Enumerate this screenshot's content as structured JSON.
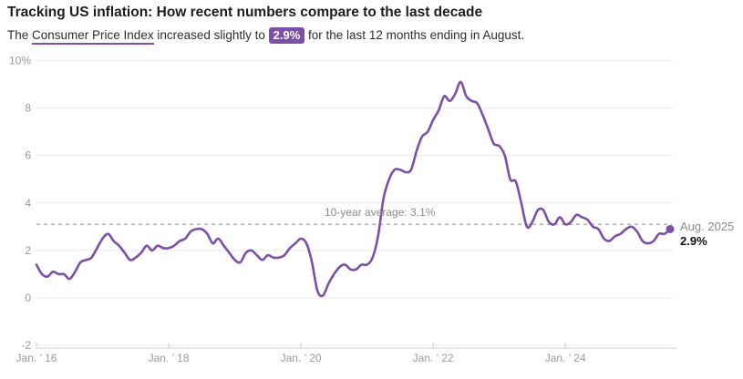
{
  "header": {
    "title": "Tracking US inflation: How recent numbers compare to the last decade",
    "subtitle_prefix": "The ",
    "subtitle_term": "Consumer Price Index",
    "subtitle_mid": " increased slightly to ",
    "subtitle_badge": "2.9%",
    "subtitle_suffix": " for the last 12 months ending in August."
  },
  "average_line": {
    "label": "10-year average: 3.1%",
    "value": 3.1
  },
  "annotation": {
    "date_label": "Aug. 2025",
    "value_label": "2.9%"
  },
  "colors": {
    "line": "#7d4fa6",
    "accent": "#7d4fa6",
    "grid": "#e9e9e9",
    "axis_line": "#cfcfcf",
    "axis_text": "#9b9b9b",
    "dashed": "#a3a3a3",
    "muted_text": "#8c8c8c"
  },
  "chart_data": {
    "type": "line",
    "title": "Tracking US inflation: How recent numbers compare to the last decade",
    "unit": "%",
    "x_start": "Jan 2016",
    "x_end": "Aug 2025",
    "ylim": [
      -2,
      10
    ],
    "grid": true,
    "y_ticks": [
      {
        "label": "10%",
        "value": 10
      },
      {
        "label": "8",
        "value": 8
      },
      {
        "label": "6",
        "value": 6
      },
      {
        "label": "4",
        "value": 4
      },
      {
        "label": "2",
        "value": 2
      },
      {
        "label": "0",
        "value": 0
      },
      {
        "label": "-2",
        "value": -2
      }
    ],
    "x_ticks": [
      {
        "label": "Jan. ’ 16",
        "month_index": 0
      },
      {
        "label": "Jan. ’ 18",
        "month_index": 24
      },
      {
        "label": "Jan. ’ 20",
        "month_index": 48
      },
      {
        "label": "Jan. ’ 22",
        "month_index": 72
      },
      {
        "label": "Jan. ’ 24",
        "month_index": 96
      }
    ],
    "average": 3.1,
    "average_label": "10-year average: 3.1%",
    "last_point": {
      "label": "Aug. 2025",
      "value": 2.9
    },
    "series": [
      {
        "name": "Consumer Price Index, 12-month change",
        "start_month": "2016-01",
        "values": [
          1.4,
          1.0,
          0.9,
          1.1,
          1.0,
          1.0,
          0.8,
          1.1,
          1.5,
          1.6,
          1.7,
          2.1,
          2.5,
          2.7,
          2.4,
          2.2,
          1.9,
          1.6,
          1.7,
          1.9,
          2.2,
          2.0,
          2.2,
          2.1,
          2.1,
          2.2,
          2.4,
          2.5,
          2.8,
          2.9,
          2.9,
          2.7,
          2.3,
          2.5,
          2.2,
          1.9,
          1.6,
          1.5,
          1.9,
          2.0,
          1.8,
          1.6,
          1.8,
          1.7,
          1.7,
          1.8,
          2.1,
          2.3,
          2.5,
          2.3,
          1.5,
          0.3,
          0.1,
          0.6,
          1.0,
          1.3,
          1.4,
          1.2,
          1.2,
          1.4,
          1.4,
          1.7,
          2.6,
          4.2,
          5.0,
          5.4,
          5.4,
          5.3,
          5.4,
          6.2,
          6.8,
          7.0,
          7.5,
          7.9,
          8.5,
          8.3,
          8.6,
          9.1,
          8.5,
          8.3,
          8.2,
          7.7,
          7.1,
          6.5,
          6.4,
          6.0,
          5.0,
          4.9,
          4.0,
          3.0,
          3.2,
          3.7,
          3.7,
          3.2,
          3.1,
          3.4,
          3.1,
          3.2,
          3.5,
          3.4,
          3.3,
          3.0,
          2.9,
          2.5,
          2.4,
          2.6,
          2.7,
          2.9,
          3.0,
          2.8,
          2.4,
          2.3,
          2.4,
          2.7,
          2.7,
          2.9
        ]
      }
    ]
  }
}
